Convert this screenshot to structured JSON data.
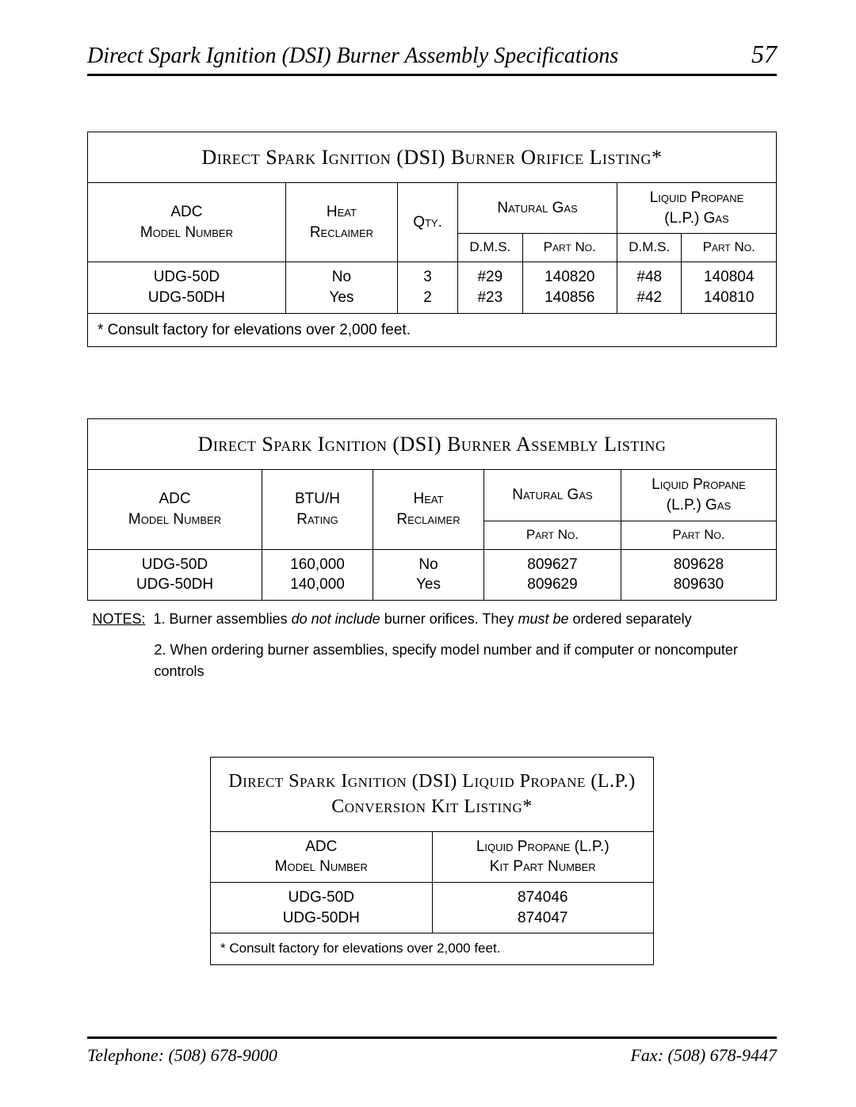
{
  "colors": {
    "text": "#000000",
    "bg": "#ffffff",
    "rule": "#000000"
  },
  "header": {
    "title": "Direct Spark Ignition (DSI) Burner Assembly Specifications",
    "page_number": "57"
  },
  "footer": {
    "telephone": "Telephone: (508) 678-9000",
    "fax": "Fax: (508) 678-9447"
  },
  "table1": {
    "title": "Direct Spark Ignition (DSI) Burner Orifice Listing*",
    "columns": {
      "model": "ADC\nModel Number",
      "heat": "Heat\nReclaimer",
      "qty": "Qty.",
      "natgas": "Natural Gas",
      "lp": "Liquid Propane\n(L.P.) Gas",
      "dms": "D.M.S.",
      "partno": "Part No."
    },
    "rows": [
      {
        "model": "UDG-50D",
        "heat": "No",
        "qty": "3",
        "ng_dms": "#29",
        "ng_part": "140820",
        "lp_dms": "#48",
        "lp_part": "140804"
      },
      {
        "model": "UDG-50DH",
        "heat": "Yes",
        "qty": "2",
        "ng_dms": "#23",
        "ng_part": "140856",
        "lp_dms": "#42",
        "lp_part": "140810"
      }
    ],
    "footnote": "*  Consult factory for elevations over 2,000 feet."
  },
  "table2": {
    "title": "Direct Spark Ignition (DSI) Burner Assembly Listing",
    "columns": {
      "model": "ADC\nModel Number",
      "btu": "BTU/H\nRating",
      "heat": "Heat\nReclaimer",
      "natgas": "Natural Gas",
      "lp": "Liquid Propane\n(L.P.) Gas",
      "partno": "Part No."
    },
    "rows": [
      {
        "model": "UDG-50D",
        "btu": "160,000",
        "heat": "No",
        "ng_part": "809627",
        "lp_part": "809628"
      },
      {
        "model": "UDG-50DH",
        "btu": "140,000",
        "heat": "Yes",
        "ng_part": "809629",
        "lp_part": "809630"
      }
    ],
    "notes": {
      "label": "NOTES:",
      "n1_a": "1.  Burner assemblies ",
      "n1_b": "do not include",
      "n1_c": " burner orifices. They ",
      "n1_d": "must be ",
      "n1_e": "ordered separately",
      "n2": "2.  When ordering burner assemblies, specify model number and if computer or noncomputer controls"
    }
  },
  "table3": {
    "title": "Direct Spark Ignition (DSI) Liquid Propane (L.P.) Conversion Kit Listing*",
    "columns": {
      "model": "ADC\nModel Number",
      "kit": "Liquid Propane (L.P.)\nKit Part Number"
    },
    "rows": [
      {
        "model": "UDG-50D",
        "kit": "874046"
      },
      {
        "model": "UDG-50DH",
        "kit": "874047"
      }
    ],
    "footnote": "*  Consult factory for elevations over 2,000 feet."
  }
}
